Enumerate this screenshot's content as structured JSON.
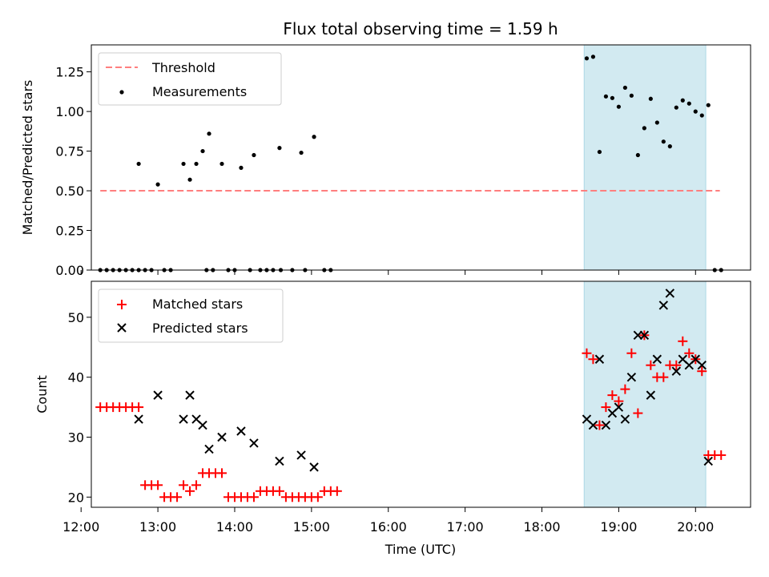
{
  "chart_data": {
    "title": "Flux total observing time = 1.59 h",
    "xlabel": "Time (UTC)",
    "xlim": [
      "12:08",
      "20:43"
    ],
    "xticks": [
      "12:00",
      "13:00",
      "14:00",
      "15:00",
      "16:00",
      "17:00",
      "18:00",
      "19:00",
      "20:00"
    ],
    "shaded_span": {
      "from": "18:33",
      "to": "20:08",
      "color": "#add8e6"
    },
    "panels": [
      {
        "type": "scatter",
        "ylabel": "Matched/Predicted stars",
        "ylim": [
          0,
          1.42
        ],
        "yticks": [
          "0.00",
          "0.25",
          "0.50",
          "0.75",
          "1.00",
          "1.25"
        ],
        "legend_position": "top-left",
        "series": [
          {
            "name": "Threshold",
            "style": "dashed-line",
            "color": "#ff7f7f",
            "points": [
              [
                "12:15",
                0.5
              ],
              [
                "20:19",
                0.5
              ]
            ]
          },
          {
            "name": "Measurements",
            "style": "dot",
            "color": "#000000",
            "points": [
              [
                "12:15",
                0
              ],
              [
                "12:20",
                0
              ],
              [
                "12:25",
                0
              ],
              [
                "12:30",
                0
              ],
              [
                "12:35",
                0
              ],
              [
                "12:40",
                0
              ],
              [
                "12:45",
                0
              ],
              [
                "12:50",
                0
              ],
              [
                "12:55",
                0
              ],
              [
                "13:05",
                0
              ],
              [
                "13:10",
                0
              ],
              [
                "13:38",
                0
              ],
              [
                "13:43",
                0
              ],
              [
                "13:55",
                0
              ],
              [
                "14:00",
                0
              ],
              [
                "14:12",
                0
              ],
              [
                "14:20",
                0
              ],
              [
                "14:25",
                0
              ],
              [
                "14:30",
                0
              ],
              [
                "14:36",
                0
              ],
              [
                "14:45",
                0
              ],
              [
                "14:55",
                0
              ],
              [
                "15:10",
                0
              ],
              [
                "15:15",
                0
              ],
              [
                "20:15",
                0
              ],
              [
                "20:20",
                0
              ],
              [
                "12:45",
                0.67
              ],
              [
                "13:00",
                0.54
              ],
              [
                "13:20",
                0.67
              ],
              [
                "13:25",
                0.57
              ],
              [
                "13:30",
                0.67
              ],
              [
                "13:35",
                0.75
              ],
              [
                "13:40",
                0.86
              ],
              [
                "13:50",
                0.67
              ],
              [
                "14:05",
                0.645
              ],
              [
                "14:15",
                0.725
              ],
              [
                "14:35",
                0.77
              ],
              [
                "14:52",
                0.74
              ],
              [
                "15:02",
                0.84
              ],
              [
                "18:35",
                1.335
              ],
              [
                "18:40",
                1.345
              ],
              [
                "18:45",
                0.745
              ],
              [
                "18:50",
                1.095
              ],
              [
                "18:55",
                1.085
              ],
              [
                "19:00",
                1.03
              ],
              [
                "19:05",
                1.15
              ],
              [
                "19:10",
                1.1
              ],
              [
                "19:15",
                0.725
              ],
              [
                "19:20",
                0.895
              ],
              [
                "19:25",
                1.08
              ],
              [
                "19:30",
                0.93
              ],
              [
                "19:35",
                0.81
              ],
              [
                "19:40",
                0.78
              ],
              [
                "19:45",
                1.025
              ],
              [
                "19:50",
                1.07
              ],
              [
                "19:55",
                1.05
              ],
              [
                "20:00",
                1.0
              ],
              [
                "20:05",
                0.975
              ],
              [
                "20:10",
                1.04
              ]
            ]
          }
        ]
      },
      {
        "type": "scatter",
        "ylabel": "Count",
        "ylim": [
          18.3,
          56
        ],
        "yticks": [
          "20",
          "30",
          "40",
          "50"
        ],
        "legend_position": "top-left",
        "series": [
          {
            "name": "Matched stars",
            "marker": "plus",
            "color": "#ff0000",
            "points": [
              [
                "12:15",
                35
              ],
              [
                "12:20",
                35
              ],
              [
                "12:25",
                35
              ],
              [
                "12:30",
                35
              ],
              [
                "12:35",
                35
              ],
              [
                "12:40",
                35
              ],
              [
                "12:45",
                35
              ],
              [
                "12:50",
                22
              ],
              [
                "12:55",
                22
              ],
              [
                "13:00",
                22
              ],
              [
                "13:05",
                20
              ],
              [
                "13:10",
                20
              ],
              [
                "13:15",
                20
              ],
              [
                "13:20",
                22
              ],
              [
                "13:25",
                21
              ],
              [
                "13:30",
                22
              ],
              [
                "13:35",
                24
              ],
              [
                "13:40",
                24
              ],
              [
                "13:45",
                24
              ],
              [
                "13:50",
                24
              ],
              [
                "13:55",
                20
              ],
              [
                "14:00",
                20
              ],
              [
                "14:05",
                20
              ],
              [
                "14:10",
                20
              ],
              [
                "14:15",
                20
              ],
              [
                "14:20",
                21
              ],
              [
                "14:25",
                21
              ],
              [
                "14:30",
                21
              ],
              [
                "14:35",
                21
              ],
              [
                "14:40",
                20
              ],
              [
                "14:45",
                20
              ],
              [
                "14:50",
                20
              ],
              [
                "14:55",
                20
              ],
              [
                "15:00",
                20
              ],
              [
                "15:05",
                20
              ],
              [
                "15:10",
                21
              ],
              [
                "15:15",
                21
              ],
              [
                "15:20",
                21
              ],
              [
                "18:35",
                44
              ],
              [
                "18:40",
                43
              ],
              [
                "18:45",
                32
              ],
              [
                "18:50",
                35
              ],
              [
                "18:55",
                37
              ],
              [
                "19:00",
                36
              ],
              [
                "19:05",
                38
              ],
              [
                "19:10",
                44
              ],
              [
                "19:15",
                34
              ],
              [
                "19:20",
                47
              ],
              [
                "19:25",
                42
              ],
              [
                "19:30",
                40
              ],
              [
                "19:35",
                40
              ],
              [
                "19:40",
                42
              ],
              [
                "19:45",
                42
              ],
              [
                "19:50",
                46
              ],
              [
                "19:55",
                44
              ],
              [
                "20:00",
                43
              ],
              [
                "20:05",
                41
              ],
              [
                "20:10",
                27
              ],
              [
                "20:15",
                27
              ],
              [
                "20:20",
                27
              ]
            ]
          },
          {
            "name": "Predicted stars",
            "marker": "x",
            "color": "#000000",
            "points": [
              [
                "12:45",
                33
              ],
              [
                "13:00",
                37
              ],
              [
                "13:20",
                33
              ],
              [
                "13:25",
                37
              ],
              [
                "13:30",
                33
              ],
              [
                "13:35",
                32
              ],
              [
                "13:40",
                28
              ],
              [
                "13:50",
                30
              ],
              [
                "14:05",
                31
              ],
              [
                "14:15",
                29
              ],
              [
                "14:35",
                26
              ],
              [
                "14:52",
                27
              ],
              [
                "15:02",
                25
              ],
              [
                "18:35",
                33
              ],
              [
                "18:40",
                32
              ],
              [
                "18:45",
                43
              ],
              [
                "18:50",
                32
              ],
              [
                "18:55",
                34
              ],
              [
                "19:00",
                35
              ],
              [
                "19:05",
                33
              ],
              [
                "19:10",
                40
              ],
              [
                "19:15",
                47
              ],
              [
                "19:20",
                47
              ],
              [
                "19:25",
                37
              ],
              [
                "19:30",
                43
              ],
              [
                "19:35",
                52
              ],
              [
                "19:40",
                54
              ],
              [
                "19:45",
                41
              ],
              [
                "19:50",
                43
              ],
              [
                "19:55",
                42
              ],
              [
                "20:00",
                43
              ],
              [
                "20:05",
                42
              ],
              [
                "20:10",
                26
              ]
            ]
          }
        ]
      }
    ]
  }
}
